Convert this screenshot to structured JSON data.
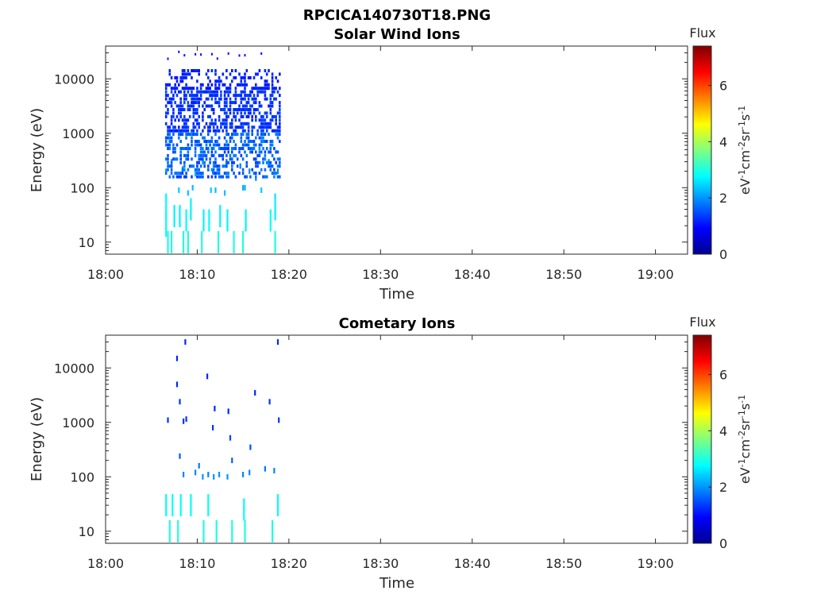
{
  "figure": {
    "title": "RPCICA140730T18.PNG"
  },
  "chart_data": [
    {
      "type": "heatmap",
      "title": "Solar Wind Ions",
      "xlabel": "Time",
      "ylabel": "Energy (eV)",
      "x_ticks": [
        "18:00",
        "18:10",
        "18:20",
        "18:30",
        "18:40",
        "18:50",
        "19:00"
      ],
      "xlim_minutes": [
        0,
        63.5
      ],
      "y_scale": "log",
      "y_ticks": [
        "10",
        "100",
        "1000",
        "10000"
      ],
      "ylim": [
        6,
        40000
      ],
      "colorbar": {
        "label": "Flux",
        "unit": "eV^-1 cm^-2 sr^-1 s^-1",
        "ticks": [
          "0",
          "2",
          "4",
          "6"
        ],
        "range": [
          0,
          7.4
        ],
        "colormap": "jet"
      },
      "data_window_minutes": [
        6.5,
        19
      ],
      "bins": [
        {
          "t": 6.6,
          "e": 20,
          "v": 2.8
        },
        {
          "t": 6.6,
          "e": 45,
          "v": 2.8
        },
        {
          "t": 6.8,
          "e": 10,
          "v": 3.0
        },
        {
          "t": 7.2,
          "e": 10,
          "v": 3.0
        },
        {
          "t": 7.5,
          "e": 30,
          "v": 2.7
        },
        {
          "t": 8.1,
          "e": 30,
          "v": 2.7
        },
        {
          "t": 8.5,
          "e": 10,
          "v": 3.0
        },
        {
          "t": 8.8,
          "e": 25,
          "v": 2.8
        },
        {
          "t": 9.0,
          "e": 10,
          "v": 3.0
        },
        {
          "t": 9.3,
          "e": 40,
          "v": 2.7
        },
        {
          "t": 10.5,
          "e": 10,
          "v": 3.0
        },
        {
          "t": 10.7,
          "e": 25,
          "v": 2.7
        },
        {
          "t": 11.3,
          "e": 25,
          "v": 2.8
        },
        {
          "t": 12.3,
          "e": 10,
          "v": 3.0
        },
        {
          "t": 12.5,
          "e": 30,
          "v": 2.7
        },
        {
          "t": 13.3,
          "e": 25,
          "v": 2.7
        },
        {
          "t": 14.0,
          "e": 10,
          "v": 3.0
        },
        {
          "t": 15.0,
          "e": 10,
          "v": 3.0
        },
        {
          "t": 15.3,
          "e": 25,
          "v": 2.7
        },
        {
          "t": 18.0,
          "e": 25,
          "v": 2.8
        },
        {
          "t": 18.5,
          "e": 10,
          "v": 3.0
        },
        {
          "t": 18.5,
          "e": 40,
          "v": 2.7
        },
        {
          "t": 6.6,
          "e": 70,
          "v": 2.8
        },
        {
          "t": 8.0,
          "e": 90,
          "v": 2.4
        },
        {
          "t": 9.0,
          "e": 80,
          "v": 2.4
        },
        {
          "t": 9.5,
          "e": 100,
          "v": 2.3
        },
        {
          "t": 11.5,
          "e": 90,
          "v": 2.4
        },
        {
          "t": 12.0,
          "e": 90,
          "v": 2.3
        },
        {
          "t": 13.0,
          "e": 80,
          "v": 2.3
        },
        {
          "t": 15.0,
          "e": 100,
          "v": 2.2
        },
        {
          "t": 15.2,
          "e": 100,
          "v": 2.2
        },
        {
          "t": 17.0,
          "e": 90,
          "v": 2.4
        },
        {
          "t": 18.5,
          "e": 70,
          "v": 2.6
        },
        {
          "t": 6.6,
          "e": 200,
          "v": 2.0
        },
        {
          "t": 7.2,
          "e": 300,
          "v": 2.0
        },
        {
          "t": 8.4,
          "e": 220,
          "v": 2.0
        },
        {
          "t": 9.8,
          "e": 180,
          "v": 2.2
        },
        {
          "t": 10.6,
          "e": 300,
          "v": 2.0
        },
        {
          "t": 11.7,
          "e": 200,
          "v": 1.8
        },
        {
          "t": 13.2,
          "e": 300,
          "v": 1.7
        },
        {
          "t": 14.7,
          "e": 250,
          "v": 1.8
        },
        {
          "t": 15.7,
          "e": 200,
          "v": 1.9
        },
        {
          "t": 16.4,
          "e": 150,
          "v": 1.9
        },
        {
          "t": 17.8,
          "e": 300,
          "v": 1.9
        },
        {
          "t": 18.8,
          "e": 200,
          "v": 1.9
        }
      ]
    },
    {
      "type": "heatmap",
      "title": "Cometary Ions",
      "xlabel": "Time",
      "ylabel": "Energy (eV)",
      "x_ticks": [
        "18:00",
        "18:10",
        "18:20",
        "18:30",
        "18:40",
        "18:50",
        "19:00"
      ],
      "xlim_minutes": [
        0,
        63.5
      ],
      "y_scale": "log",
      "y_ticks": [
        "10",
        "100",
        "1000",
        "10000"
      ],
      "ylim": [
        6,
        40000
      ],
      "colorbar": {
        "label": "Flux",
        "unit": "eV^-1 cm^-2 sr^-1 s^-1",
        "ticks": [
          "0",
          "2",
          "4",
          "6"
        ],
        "range": [
          0,
          7.4
        ],
        "colormap": "jet"
      },
      "bins": [
        {
          "t": 8.7,
          "e": 30000,
          "v": 1.2
        },
        {
          "t": 18.8,
          "e": 30000,
          "v": 1.2
        },
        {
          "t": 7.8,
          "e": 15000,
          "v": 1.2
        },
        {
          "t": 11.1,
          "e": 7000,
          "v": 1.2
        },
        {
          "t": 7.8,
          "e": 5000,
          "v": 1.2
        },
        {
          "t": 16.3,
          "e": 3500,
          "v": 1.2
        },
        {
          "t": 8.1,
          "e": 2400,
          "v": 1.3
        },
        {
          "t": 17.9,
          "e": 2400,
          "v": 1.3
        },
        {
          "t": 11.9,
          "e": 1800,
          "v": 1.2
        },
        {
          "t": 13.4,
          "e": 1600,
          "v": 1.2
        },
        {
          "t": 6.8,
          "e": 1100,
          "v": 1.3
        },
        {
          "t": 8.5,
          "e": 1050,
          "v": 1.3
        },
        {
          "t": 8.8,
          "e": 1150,
          "v": 1.3
        },
        {
          "t": 18.9,
          "e": 1100,
          "v": 1.3
        },
        {
          "t": 11.7,
          "e": 800,
          "v": 1.3
        },
        {
          "t": 13.6,
          "e": 520,
          "v": 1.4
        },
        {
          "t": 15.8,
          "e": 350,
          "v": 1.5
        },
        {
          "t": 8.1,
          "e": 240,
          "v": 1.6
        },
        {
          "t": 13.8,
          "e": 200,
          "v": 1.6
        },
        {
          "t": 10.2,
          "e": 160,
          "v": 1.8
        },
        {
          "t": 8.5,
          "e": 110,
          "v": 1.9
        },
        {
          "t": 9.8,
          "e": 120,
          "v": 1.9
        },
        {
          "t": 10.6,
          "e": 100,
          "v": 2.0
        },
        {
          "t": 11.2,
          "e": 110,
          "v": 1.9
        },
        {
          "t": 11.8,
          "e": 100,
          "v": 2.0
        },
        {
          "t": 12.4,
          "e": 110,
          "v": 2.0
        },
        {
          "t": 13.3,
          "e": 100,
          "v": 2.0
        },
        {
          "t": 15.0,
          "e": 110,
          "v": 1.9
        },
        {
          "t": 15.7,
          "e": 120,
          "v": 1.9
        },
        {
          "t": 17.4,
          "e": 140,
          "v": 1.8
        },
        {
          "t": 18.4,
          "e": 130,
          "v": 1.9
        },
        {
          "t": 6.6,
          "e": 30,
          "v": 2.8
        },
        {
          "t": 7.3,
          "e": 30,
          "v": 2.8
        },
        {
          "t": 8.2,
          "e": 30,
          "v": 2.8
        },
        {
          "t": 9.3,
          "e": 30,
          "v": 2.8
        },
        {
          "t": 11.2,
          "e": 30,
          "v": 2.8
        },
        {
          "t": 15.1,
          "e": 25,
          "v": 2.8
        },
        {
          "t": 18.8,
          "e": 30,
          "v": 2.8
        },
        {
          "t": 7.0,
          "e": 10,
          "v": 3.0
        },
        {
          "t": 7.9,
          "e": 10,
          "v": 3.0
        },
        {
          "t": 10.7,
          "e": 10,
          "v": 3.0
        },
        {
          "t": 12.1,
          "e": 10,
          "v": 3.0
        },
        {
          "t": 13.8,
          "e": 10,
          "v": 3.0
        },
        {
          "t": 15.2,
          "e": 10,
          "v": 3.0
        },
        {
          "t": 18.2,
          "e": 10,
          "v": 3.0
        }
      ]
    }
  ]
}
